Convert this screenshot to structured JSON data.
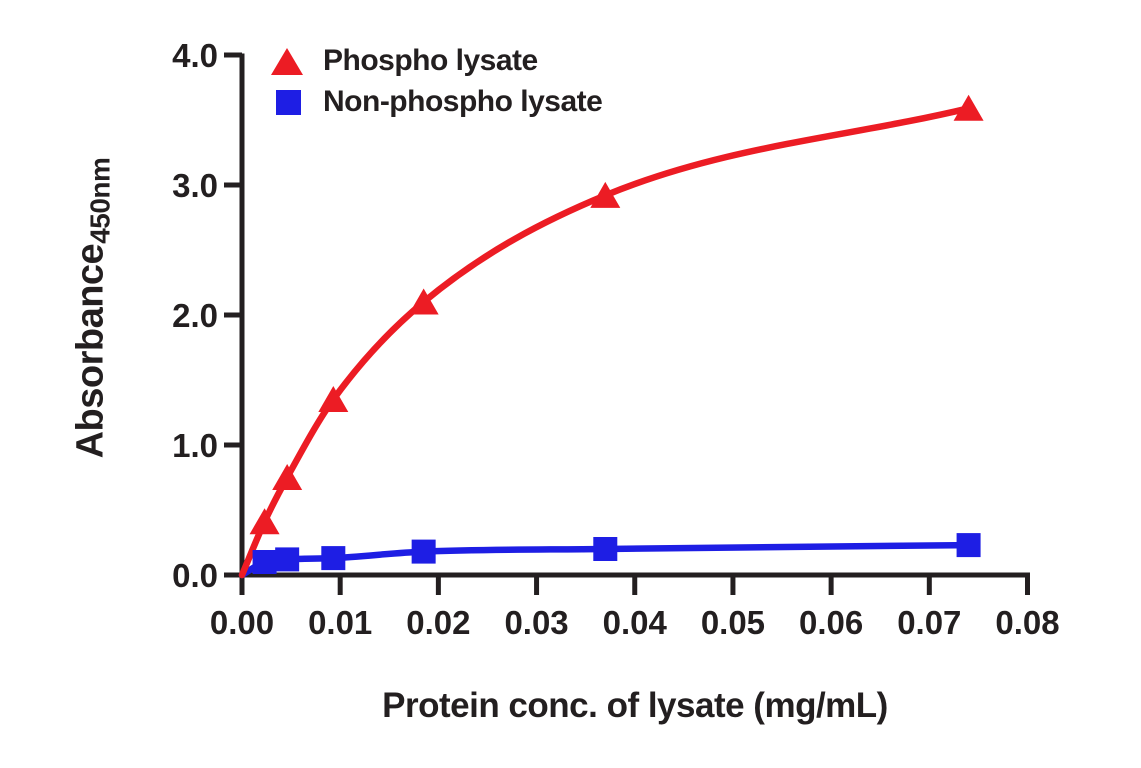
{
  "chart_data": {
    "type": "line",
    "title": "",
    "xlabel": "Protein conc. of lysate (mg/mL)",
    "ylabel": "Absorbance",
    "ylabel_subscript": "450nm",
    "xlim": [
      0,
      0.08
    ],
    "ylim": [
      0,
      4.0
    ],
    "x_tick_labels": [
      "0.00",
      "0.01",
      "0.02",
      "0.03",
      "0.04",
      "0.05",
      "0.06",
      "0.07",
      "0.08"
    ],
    "y_tick_labels": [
      "0.0",
      "1.0",
      "2.0",
      "3.0",
      "4.0"
    ],
    "grid": false,
    "legend_position": "upper-left-inside",
    "lines_start_at_origin": true,
    "x": [
      0.0023,
      0.0046,
      0.0093,
      0.0185,
      0.037,
      0.074
    ],
    "series": [
      {
        "name": "Phospho lysate",
        "marker": "triangle",
        "color": "#ec1c24",
        "values": [
          0.41,
          0.75,
          1.35,
          2.1,
          2.92,
          3.59
        ]
      },
      {
        "name": "Non-phospho lysate",
        "marker": "square",
        "color": "#1e1ee4",
        "values": [
          0.1,
          0.12,
          0.13,
          0.18,
          0.2,
          0.23
        ]
      }
    ],
    "axis_color": "#231f20",
    "text_color": "#231f20",
    "background": "#ffffff"
  }
}
